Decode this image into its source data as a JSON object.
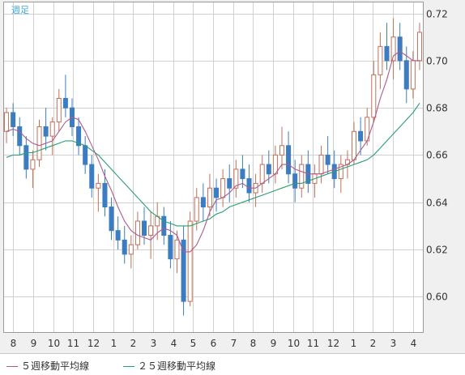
{
  "chart_data": {
    "type": "candlestick",
    "period_label": "週足",
    "y_ticks": [
      "0.72",
      "0.70",
      "0.68",
      "0.66",
      "0.64",
      "0.62",
      "0.60"
    ],
    "ylim": [
      0.585,
      0.725
    ],
    "x_tick_labels": [
      "8",
      "9",
      "10",
      "11",
      "12",
      "1",
      "2",
      "3",
      "4",
      "5",
      "6",
      "7",
      "8",
      "9",
      "10",
      "11",
      "12",
      "1",
      "2",
      "3",
      "4"
    ],
    "colors": {
      "up": "#c0705a",
      "down": "#3c7cc0",
      "ma5": "#b05a8c",
      "ma25": "#28a070",
      "grid": "#d0d0d0",
      "plot_bg": "#ffffff"
    },
    "series": [
      {
        "name": "５週移動平均線",
        "color": "#b05a8c"
      },
      {
        "name": "２５週移動平均線",
        "color": "#28a070"
      }
    ],
    "candles": [
      [
        0.67,
        0.68,
        0.665,
        0.678
      ],
      [
        0.678,
        0.682,
        0.668,
        0.672
      ],
      [
        0.672,
        0.676,
        0.66,
        0.664
      ],
      [
        0.664,
        0.668,
        0.65,
        0.654
      ],
      [
        0.654,
        0.662,
        0.646,
        0.658
      ],
      [
        0.658,
        0.675,
        0.655,
        0.672
      ],
      [
        0.672,
        0.68,
        0.662,
        0.668
      ],
      [
        0.668,
        0.676,
        0.66,
        0.674
      ],
      [
        0.674,
        0.688,
        0.67,
        0.684
      ],
      [
        0.684,
        0.694,
        0.676,
        0.68
      ],
      [
        0.68,
        0.684,
        0.668,
        0.672
      ],
      [
        0.672,
        0.676,
        0.66,
        0.664
      ],
      [
        0.664,
        0.668,
        0.652,
        0.656
      ],
      [
        0.656,
        0.66,
        0.642,
        0.646
      ],
      [
        0.646,
        0.652,
        0.636,
        0.648
      ],
      [
        0.648,
        0.654,
        0.634,
        0.638
      ],
      [
        0.638,
        0.642,
        0.624,
        0.628
      ],
      [
        0.628,
        0.634,
        0.62,
        0.624
      ],
      [
        0.624,
        0.63,
        0.614,
        0.618
      ],
      [
        0.618,
        0.626,
        0.612,
        0.622
      ],
      [
        0.622,
        0.636,
        0.62,
        0.632
      ],
      [
        0.632,
        0.638,
        0.622,
        0.626
      ],
      [
        0.626,
        0.636,
        0.616,
        0.63
      ],
      [
        0.63,
        0.64,
        0.624,
        0.634
      ],
      [
        0.634,
        0.638,
        0.622,
        0.626
      ],
      [
        0.626,
        0.632,
        0.612,
        0.616
      ],
      [
        0.616,
        0.628,
        0.61,
        0.624
      ],
      [
        0.624,
        0.63,
        0.592,
        0.598
      ],
      [
        0.598,
        0.636,
        0.596,
        0.632
      ],
      [
        0.632,
        0.646,
        0.628,
        0.642
      ],
      [
        0.642,
        0.648,
        0.632,
        0.638
      ],
      [
        0.638,
        0.652,
        0.634,
        0.646
      ],
      [
        0.646,
        0.65,
        0.636,
        0.642
      ],
      [
        0.642,
        0.654,
        0.638,
        0.65
      ],
      [
        0.65,
        0.656,
        0.64,
        0.646
      ],
      [
        0.646,
        0.658,
        0.642,
        0.654
      ],
      [
        0.654,
        0.66,
        0.646,
        0.65
      ],
      [
        0.65,
        0.656,
        0.64,
        0.644
      ],
      [
        0.644,
        0.652,
        0.638,
        0.648
      ],
      [
        0.648,
        0.66,
        0.644,
        0.656
      ],
      [
        0.656,
        0.662,
        0.648,
        0.652
      ],
      [
        0.652,
        0.664,
        0.648,
        0.66
      ],
      [
        0.66,
        0.672,
        0.654,
        0.664
      ],
      [
        0.664,
        0.67,
        0.648,
        0.652
      ],
      [
        0.652,
        0.658,
        0.64,
        0.646
      ],
      [
        0.646,
        0.66,
        0.642,
        0.656
      ],
      [
        0.656,
        0.662,
        0.644,
        0.648
      ],
      [
        0.648,
        0.656,
        0.642,
        0.652
      ],
      [
        0.652,
        0.664,
        0.648,
        0.66
      ],
      [
        0.66,
        0.668,
        0.652,
        0.656
      ],
      [
        0.656,
        0.662,
        0.646,
        0.65
      ],
      [
        0.65,
        0.66,
        0.644,
        0.656
      ],
      [
        0.656,
        0.662,
        0.65,
        0.658
      ],
      [
        0.658,
        0.674,
        0.656,
        0.67
      ],
      [
        0.67,
        0.676,
        0.66,
        0.666
      ],
      [
        0.666,
        0.68,
        0.664,
        0.676
      ],
      [
        0.676,
        0.7,
        0.674,
        0.694
      ],
      [
        0.694,
        0.712,
        0.688,
        0.706
      ],
      [
        0.706,
        0.716,
        0.696,
        0.7
      ],
      [
        0.7,
        0.718,
        0.692,
        0.71
      ],
      [
        0.71,
        0.716,
        0.696,
        0.7
      ],
      [
        0.7,
        0.706,
        0.682,
        0.688
      ],
      [
        0.688,
        0.704,
        0.684,
        0.7
      ],
      [
        0.7,
        0.716,
        0.696,
        0.712
      ]
    ],
    "ma5": [
      0.67,
      0.671,
      0.67,
      0.667,
      0.665,
      0.664,
      0.665,
      0.666,
      0.67,
      0.674,
      0.676,
      0.675,
      0.67,
      0.664,
      0.658,
      0.651,
      0.645,
      0.638,
      0.632,
      0.628,
      0.626,
      0.625,
      0.624,
      0.627,
      0.629,
      0.628,
      0.626,
      0.619,
      0.619,
      0.622,
      0.628,
      0.636,
      0.641,
      0.642,
      0.644,
      0.647,
      0.648,
      0.646,
      0.646,
      0.648,
      0.65,
      0.652,
      0.656,
      0.656,
      0.654,
      0.653,
      0.652,
      0.652,
      0.652,
      0.653,
      0.654,
      0.655,
      0.656,
      0.658,
      0.662,
      0.666,
      0.674,
      0.684,
      0.692,
      0.702,
      0.704,
      0.702,
      0.7,
      0.7
    ],
    "ma25": [
      0.659,
      0.66,
      0.66,
      0.661,
      0.661,
      0.662,
      0.663,
      0.664,
      0.665,
      0.666,
      0.666,
      0.665,
      0.664,
      0.662,
      0.66,
      0.657,
      0.654,
      0.651,
      0.648,
      0.645,
      0.642,
      0.639,
      0.636,
      0.634,
      0.632,
      0.631,
      0.63,
      0.63,
      0.63,
      0.631,
      0.632,
      0.633,
      0.635,
      0.636,
      0.638,
      0.639,
      0.64,
      0.641,
      0.642,
      0.643,
      0.644,
      0.645,
      0.646,
      0.647,
      0.648,
      0.648,
      0.649,
      0.65,
      0.651,
      0.652,
      0.653,
      0.654,
      0.655,
      0.656,
      0.657,
      0.658,
      0.66,
      0.663,
      0.666,
      0.669,
      0.672,
      0.675,
      0.678,
      0.682
    ]
  }
}
